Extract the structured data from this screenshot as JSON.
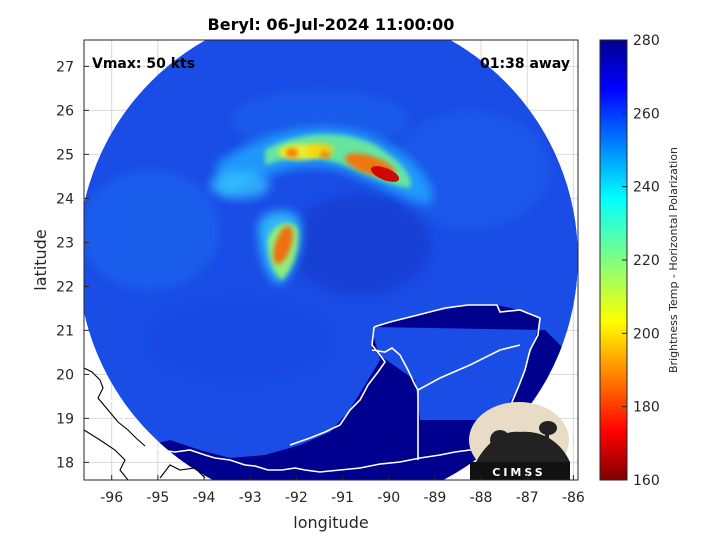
{
  "chart_data": {
    "type": "heatmap",
    "title": "Beryl: 06-Jul-2024 11:00:00",
    "xlabel": "longitude",
    "ylabel": "latitude",
    "xlim": [
      -96.6,
      -85.9
    ],
    "ylim": [
      17.6,
      27.6
    ],
    "x_ticks": [
      -96,
      -95,
      -94,
      -93,
      -92,
      -91,
      -90,
      -89,
      -88,
      -87,
      -86
    ],
    "y_ticks": [
      18,
      19,
      20,
      21,
      22,
      23,
      24,
      25,
      26,
      27
    ],
    "grid": true,
    "annotations": {
      "left": "Vmax: 50 kts",
      "right": "01:38 away"
    },
    "colorbar": {
      "label": "Brightness Temp - Horizontal Polarization",
      "range": [
        160,
        280
      ],
      "ticks": [
        160,
        180,
        200,
        220,
        240,
        260,
        280
      ],
      "colormap": "jet"
    },
    "swath": {
      "center_lon": -91.2,
      "center_lat": 22.6,
      "radius_deg": 5.6
    },
    "background_brightness_temp": 263,
    "features": [
      {
        "name": "northern rainband",
        "lon": [
          -93.2,
          -89.3
        ],
        "lat": [
          24.3,
          25.3
        ],
        "min_temp": 168
      },
      {
        "name": "western rainband",
        "lon": [
          -93.1,
          -92.3
        ],
        "lat": [
          21.8,
          23.6
        ],
        "min_temp": 185
      },
      {
        "name": "Yucatan land",
        "brightness_temp": 280
      }
    ],
    "logo": "CIMSS"
  }
}
